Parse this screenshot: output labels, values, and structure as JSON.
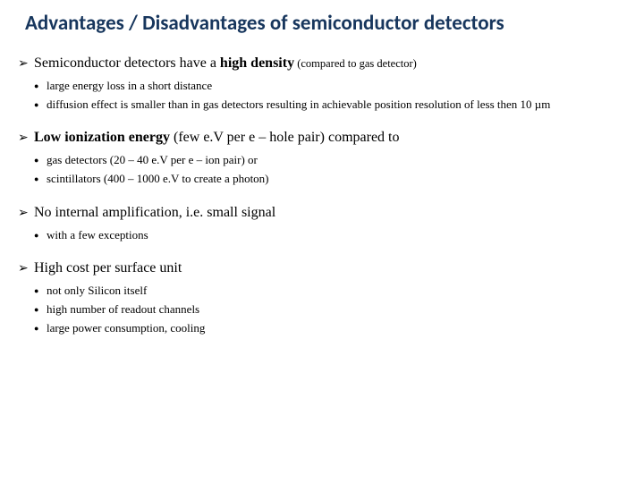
{
  "title": "Advantages / Disadvantages of semiconductor detectors",
  "sections": [
    {
      "head_pre": "Semiconductor detectors have a ",
      "head_bold": "high density",
      "head_note": " (compared to gas detector)",
      "items": [
        "large energy loss in a short distance",
        "diffusion effect is smaller than in gas detectors resulting in achievable position resolution of less then 10 µm"
      ]
    },
    {
      "head_pre": "",
      "head_bold": "Low ionization energy",
      "head_note": " (few e.V per e – hole pair) compared to",
      "items": [
        "gas detectors (20 – 40 e.V per e – ion pair) or",
        "scintillators (400 – 1000 e.V to create a photon)"
      ]
    },
    {
      "head_pre": "No internal amplification, i.e. small signal",
      "head_bold": "",
      "head_note": "",
      "items": [
        "with a few exceptions"
      ]
    },
    {
      "head_pre": "High cost per surface unit",
      "head_bold": "",
      "head_note": "",
      "items": [
        "not only Silicon itself",
        "high number of readout channels",
        "large power consumption, cooling"
      ]
    }
  ]
}
